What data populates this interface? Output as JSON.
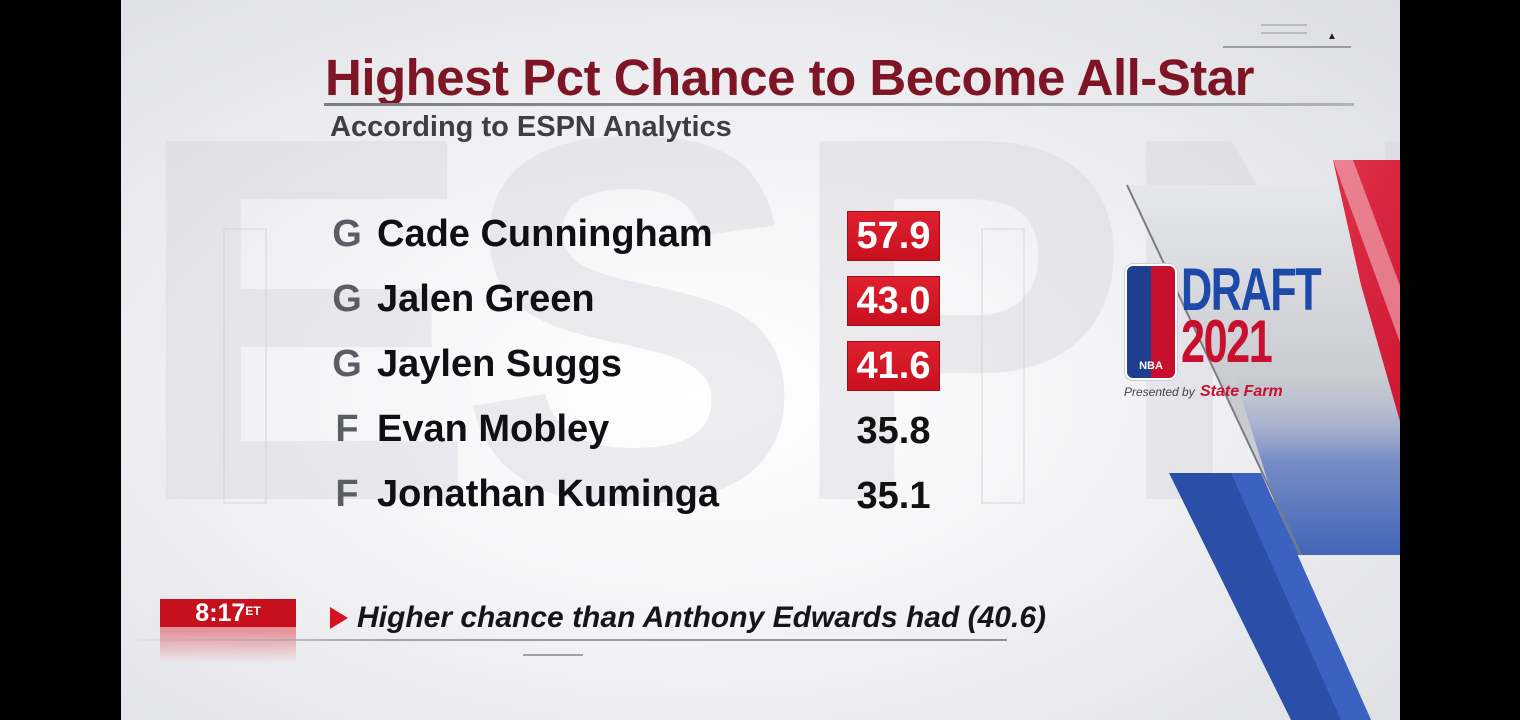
{
  "header": {
    "title": "Highest Pct Chance to Become All-Star",
    "subtitle": "According to ESPN Analytics"
  },
  "players": [
    {
      "position": "G",
      "name": "Cade Cunningham",
      "value": "57.9",
      "highlighted": true
    },
    {
      "position": "G",
      "name": "Jalen Green",
      "value": "43.0",
      "highlighted": true
    },
    {
      "position": "G",
      "name": "Jaylen Suggs",
      "value": "41.6",
      "highlighted": true
    },
    {
      "position": "F",
      "name": "Evan Mobley",
      "value": "35.8",
      "highlighted": false
    },
    {
      "position": "F",
      "name": "Jonathan Kuminga",
      "value": "35.1",
      "highlighted": false
    }
  ],
  "logo": {
    "nba": "NBA",
    "draft": "DRAFT",
    "year": "2021",
    "presented_by": "Presented by",
    "sponsor": "State Farm"
  },
  "clock": {
    "time": "8:17",
    "zone": "ET"
  },
  "ticker": {
    "text": "Higher chance than Anthony Edwards had (40.6)"
  },
  "colors": {
    "title": "#7d1525",
    "highlight": "#c8101e",
    "accent_blue": "#1d4aa8",
    "accent_red": "#c8102e"
  }
}
